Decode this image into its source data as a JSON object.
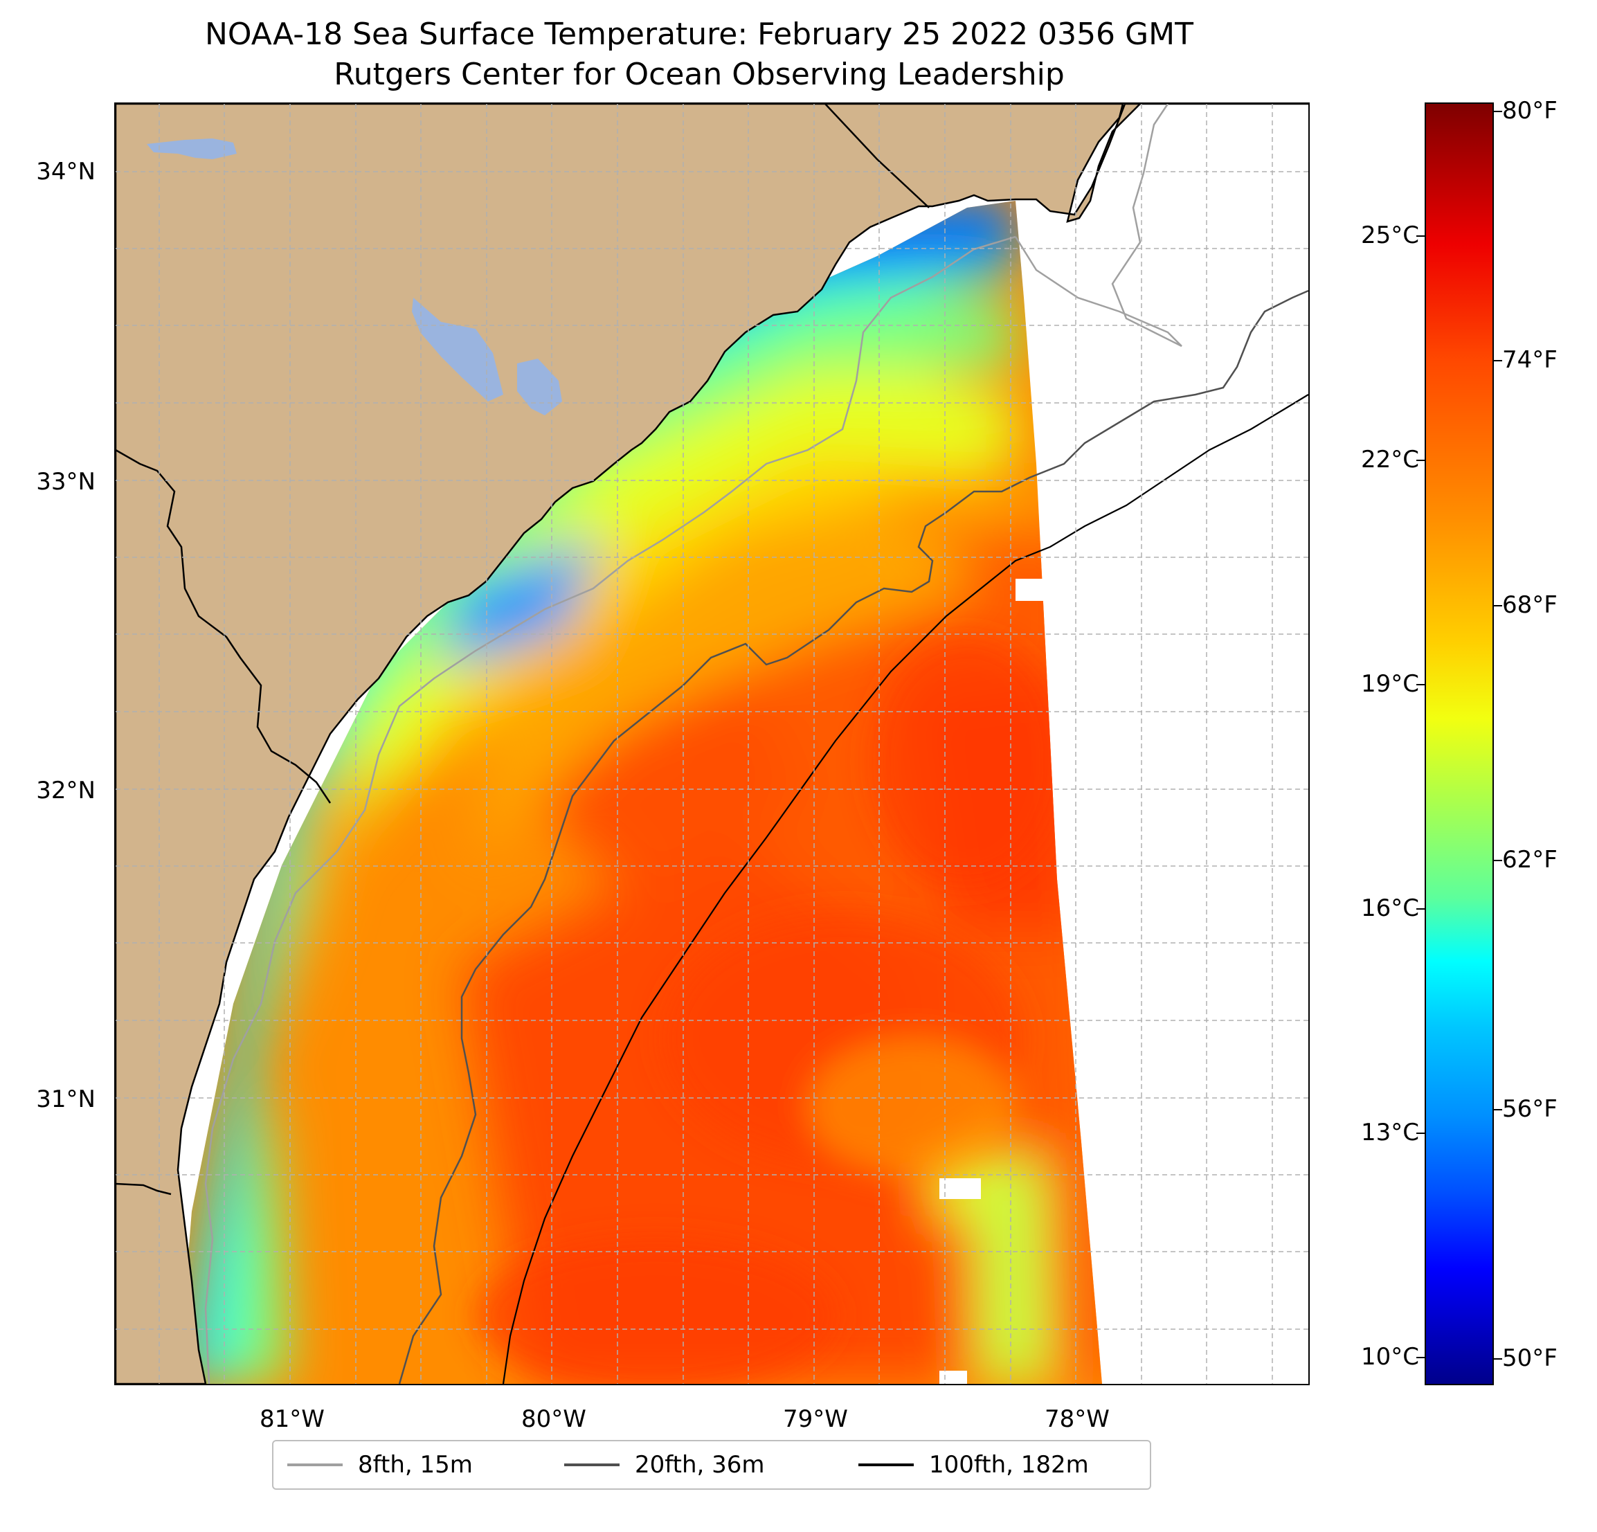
{
  "title": "NOAA-18 Sea Surface Temperature: February 25 2022 0356 GMT",
  "subtitle": "Rutgers Center for Ocean Observing Leadership",
  "axes": {
    "latitude_labels": [
      "34°N",
      "33°N",
      "32°N",
      "31°N"
    ],
    "longitude_labels": [
      "81°W",
      "80°W",
      "79°W",
      "78°W"
    ]
  },
  "colorbar": {
    "celsius_labels": [
      "25°C",
      "22°C",
      "19°C",
      "16°C",
      "13°C",
      "10°C"
    ],
    "fahrenheit_labels": [
      "80°F",
      "74°F",
      "68°F",
      "62°F",
      "56°F",
      "50°F"
    ],
    "colormap": "jet",
    "range_f": [
      49.3,
      80.6
    ]
  },
  "legend": {
    "items": [
      {
        "label": "8fth, 15m",
        "color": "#a0a0a0"
      },
      {
        "label": "20fth, 36m",
        "color": "#505050"
      },
      {
        "label": "100fth, 182m",
        "color": "#000000"
      }
    ]
  },
  "colors": {
    "land": "#d2b48c",
    "lakes": "#9ab4df",
    "no_data": "#ffffff",
    "grid": "#b0b0b0"
  }
}
